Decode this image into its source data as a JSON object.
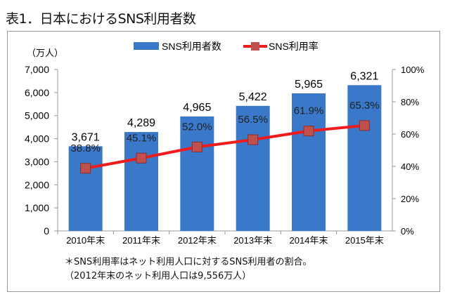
{
  "title": "表1．日本におけるSNS利用者数",
  "chart_data": {
    "type": "bar+line",
    "categories": [
      "2010年末",
      "2011年末",
      "2012年末",
      "2013年末",
      "2014年末",
      "2015年末"
    ],
    "series": [
      {
        "name": "SNS利用者数",
        "type": "bar",
        "axis": "left",
        "values": [
          3671,
          4289,
          4965,
          5422,
          5965,
          6321
        ],
        "labels": [
          "3,671",
          "4,289",
          "4,965",
          "5,422",
          "5,965",
          "6,321"
        ],
        "color": "#3A78C9"
      },
      {
        "name": "SNS利用率",
        "type": "line",
        "axis": "right",
        "values": [
          38.8,
          45.1,
          52.0,
          56.5,
          61.9,
          65.3
        ],
        "labels": [
          "38.8%",
          "45.1%",
          "52.0%",
          "56.5%",
          "61.9%",
          "65.3%"
        ],
        "color": "#EE1C1C",
        "marker_color": "#C0504D"
      }
    ],
    "ylabel": "（万人）",
    "ylim": [
      0,
      7000
    ],
    "yticks": [
      "0",
      "1,000",
      "2,000",
      "3,000",
      "4,000",
      "5,000",
      "6,000",
      "7,000"
    ],
    "y2lim": [
      0,
      100
    ],
    "y2ticks": [
      "0%",
      "20%",
      "40%",
      "60%",
      "80%",
      "100%"
    ],
    "legend": "top",
    "grid": false
  },
  "notes": [
    "＊SNS利用率はネット利用人口に対するSNS利用者の割合。",
    "（2012年末のネット利用人口は9,556万人）"
  ]
}
